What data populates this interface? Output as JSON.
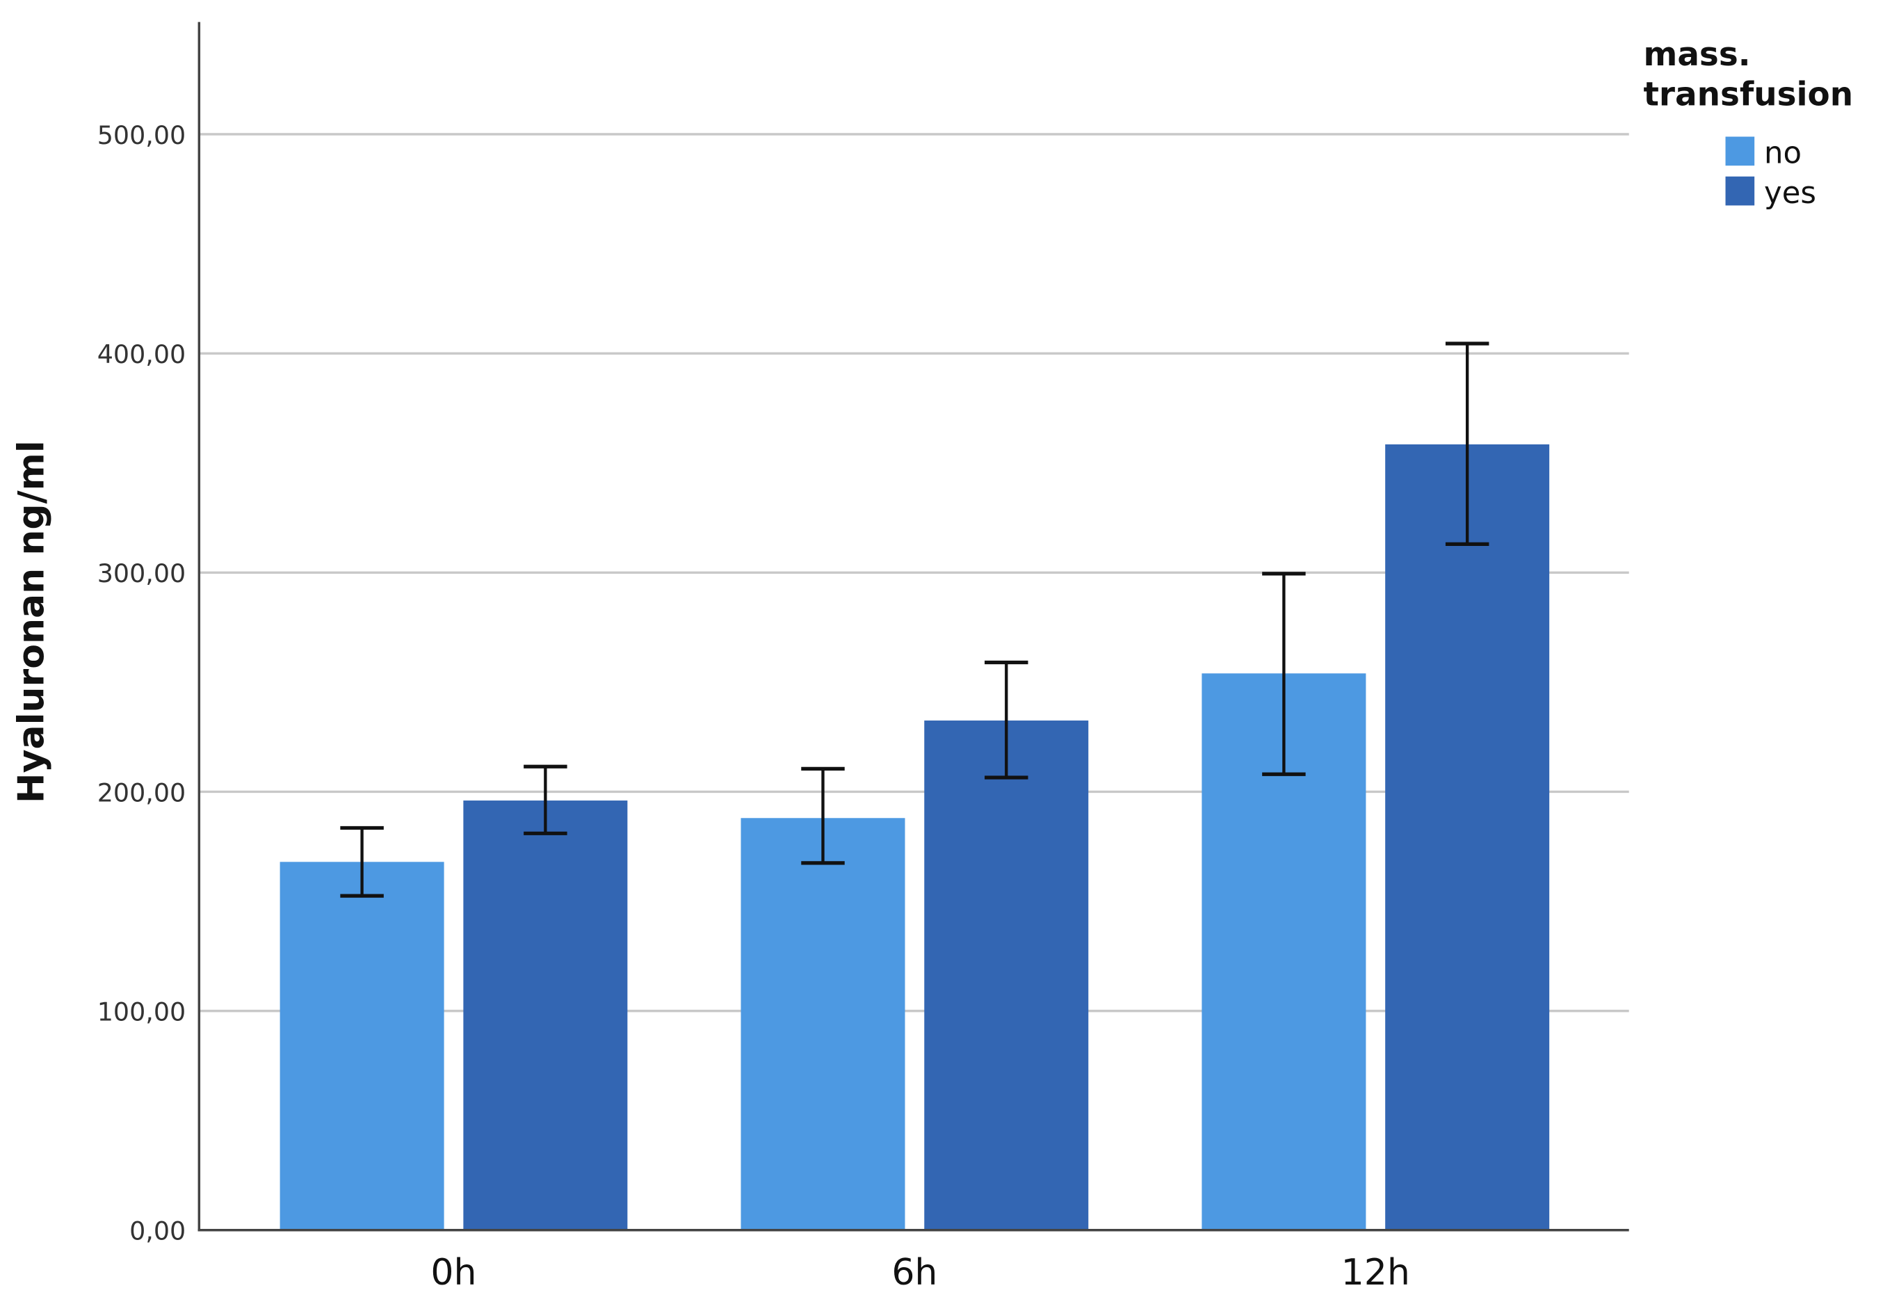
{
  "chart_data": {
    "type": "bar",
    "title": "",
    "xlabel": "",
    "ylabel": "Hyaluronan ng/ml",
    "ylim": [
      0,
      550
    ],
    "yticks": [
      "0,00",
      "100,00",
      "200,00",
      "300,00",
      "400,00",
      "500,00"
    ],
    "ytick_values": [
      0,
      100,
      200,
      300,
      400,
      500
    ],
    "grid": true,
    "categories": [
      "0h",
      "6h",
      "12h"
    ],
    "legend": {
      "title_lines": [
        "mass.",
        "transfusion"
      ],
      "placement": "top-right"
    },
    "series": [
      {
        "name": "no",
        "color": "#4D99E2",
        "values": [
          168,
          188,
          254
        ],
        "error_low": [
          152.5,
          167.5,
          208
        ],
        "error_high": [
          183.5,
          210.5,
          299.5
        ]
      },
      {
        "name": "yes",
        "color": "#3366B3",
        "values": [
          196,
          232.5,
          358.5
        ],
        "error_low": [
          181,
          206.5,
          313
        ],
        "error_high": [
          211.5,
          259,
          404.5
        ]
      }
    ]
  }
}
